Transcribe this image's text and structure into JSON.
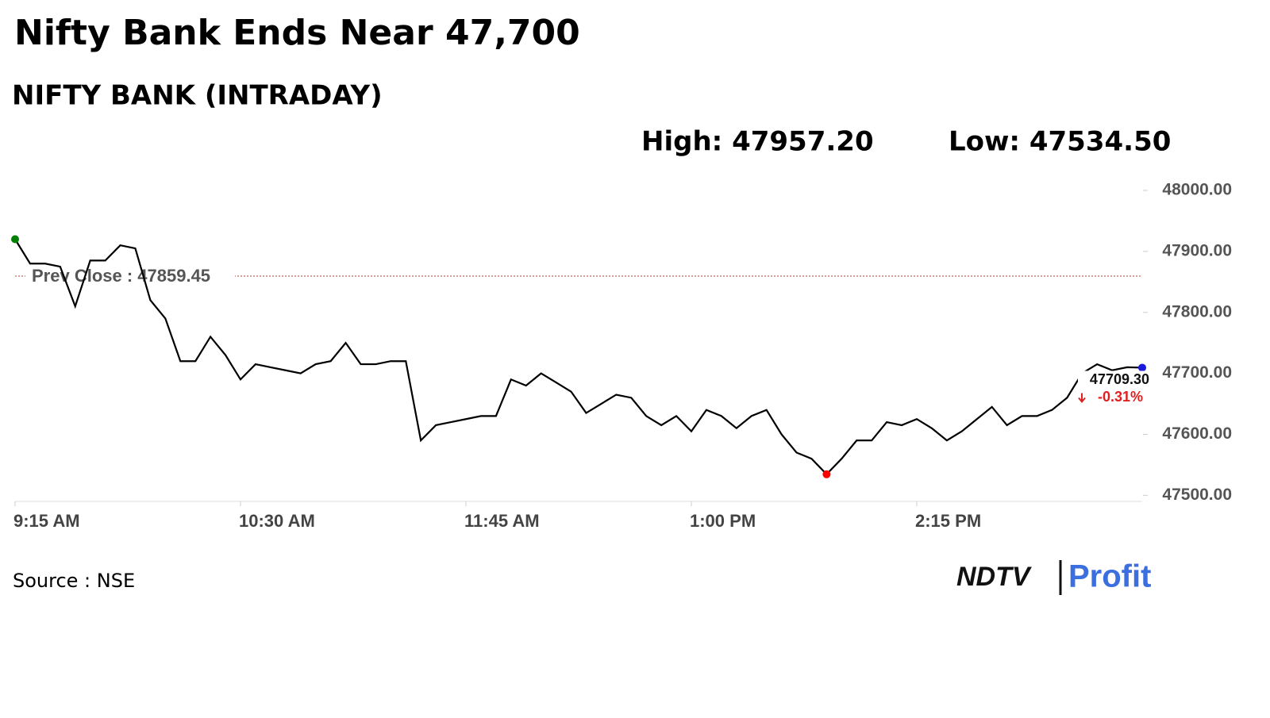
{
  "chart_data": {
    "type": "line",
    "title": "Nifty Bank Ends Near 47,700",
    "subtitle": "NIFTY BANK (INTRADAY)",
    "stats": [
      "High: 47957.20",
      "Low: 47534.50"
    ],
    "x": [
      "9:15 AM",
      "9:20 AM",
      "9:25 AM",
      "9:30 AM",
      "9:35 AM",
      "9:40 AM",
      "9:45 AM",
      "9:50 AM",
      "9:55 AM",
      "10:00 AM",
      "10:05 AM",
      "10:10 AM",
      "10:15 AM",
      "10:20 AM",
      "10:25 AM",
      "10:30 AM",
      "10:35 AM",
      "10:40 AM",
      "10:45 AM",
      "10:50 AM",
      "10:55 AM",
      "11:00 AM",
      "11:05 AM",
      "11:10 AM",
      "11:15 AM",
      "11:20 AM",
      "11:25 AM",
      "11:30 AM",
      "11:35 AM",
      "11:40 AM",
      "11:45 AM",
      "11:50 AM",
      "11:55 AM",
      "12:00 PM",
      "12:05 PM",
      "12:10 PM",
      "12:15 PM",
      "12:20 PM",
      "12:25 PM",
      "12:30 PM",
      "12:35 PM",
      "12:40 PM",
      "12:45 PM",
      "12:50 PM",
      "12:55 PM",
      "1:00 PM",
      "1:05 PM",
      "1:10 PM",
      "1:15 PM",
      "1:20 PM",
      "1:25 PM",
      "1:30 PM",
      "1:35 PM",
      "1:40 PM",
      "1:45 PM",
      "1:50 PM",
      "1:55 PM",
      "2:00 PM",
      "2:05 PM",
      "2:10 PM",
      "2:15 PM",
      "2:20 PM",
      "2:25 PM",
      "2:30 PM",
      "2:35 PM",
      "2:40 PM",
      "2:45 PM",
      "2:50 PM",
      "2:55 PM",
      "3:00 PM",
      "3:05 PM",
      "3:10 PM",
      "3:15 PM",
      "3:20 PM",
      "3:25 PM",
      "3:30 PM"
    ],
    "series": [
      {
        "name": "NIFTY BANK",
        "color": "#000000",
        "values": [
          47920,
          47880,
          47880,
          47875,
          47810,
          47885,
          47885,
          47910,
          47905,
          47820,
          47790,
          47720,
          47720,
          47760,
          47730,
          47690,
          47715,
          47710,
          47705,
          47700,
          47715,
          47720,
          47750,
          47715,
          47715,
          47720,
          47720,
          47590,
          47615,
          47620,
          47625,
          47630,
          47630,
          47690,
          47680,
          47700,
          47685,
          47670,
          47635,
          47650,
          47665,
          47660,
          47630,
          47615,
          47630,
          47605,
          47640,
          47630,
          47610,
          47630,
          47640,
          47600,
          47570,
          47560,
          47534.5,
          47560,
          47590,
          47590,
          47620,
          47615,
          47625,
          47610,
          47590,
          47605,
          47625,
          47645,
          47615,
          47630,
          47630,
          47640,
          47660,
          47700,
          47715,
          47705,
          47710,
          47709.3
        ]
      }
    ],
    "last_label": "47709.30",
    "change": {
      "value": -0.31,
      "label": "-0.31%"
    },
    "prev_close": {
      "value": 47859.45,
      "label": "Prev Close : 47859.45"
    },
    "ylim": [
      47490,
      48000
    ],
    "yticks": [
      {
        "value": 47500,
        "label": "47500.00"
      },
      {
        "value": 47600,
        "label": "47600.00"
      },
      {
        "value": 47700,
        "label": "47700.00"
      },
      {
        "value": 47800,
        "label": "47800.00"
      },
      {
        "value": 47900,
        "label": "47900.00"
      },
      {
        "value": 48000,
        "label": "48000.00"
      }
    ],
    "xticks": [
      "9:15 AM",
      "10:30 AM",
      "11:45 AM",
      "1:00 PM",
      "2:15 PM"
    ],
    "source": "Source : NSE",
    "logo": [
      "NDTV",
      "Profit"
    ]
  }
}
